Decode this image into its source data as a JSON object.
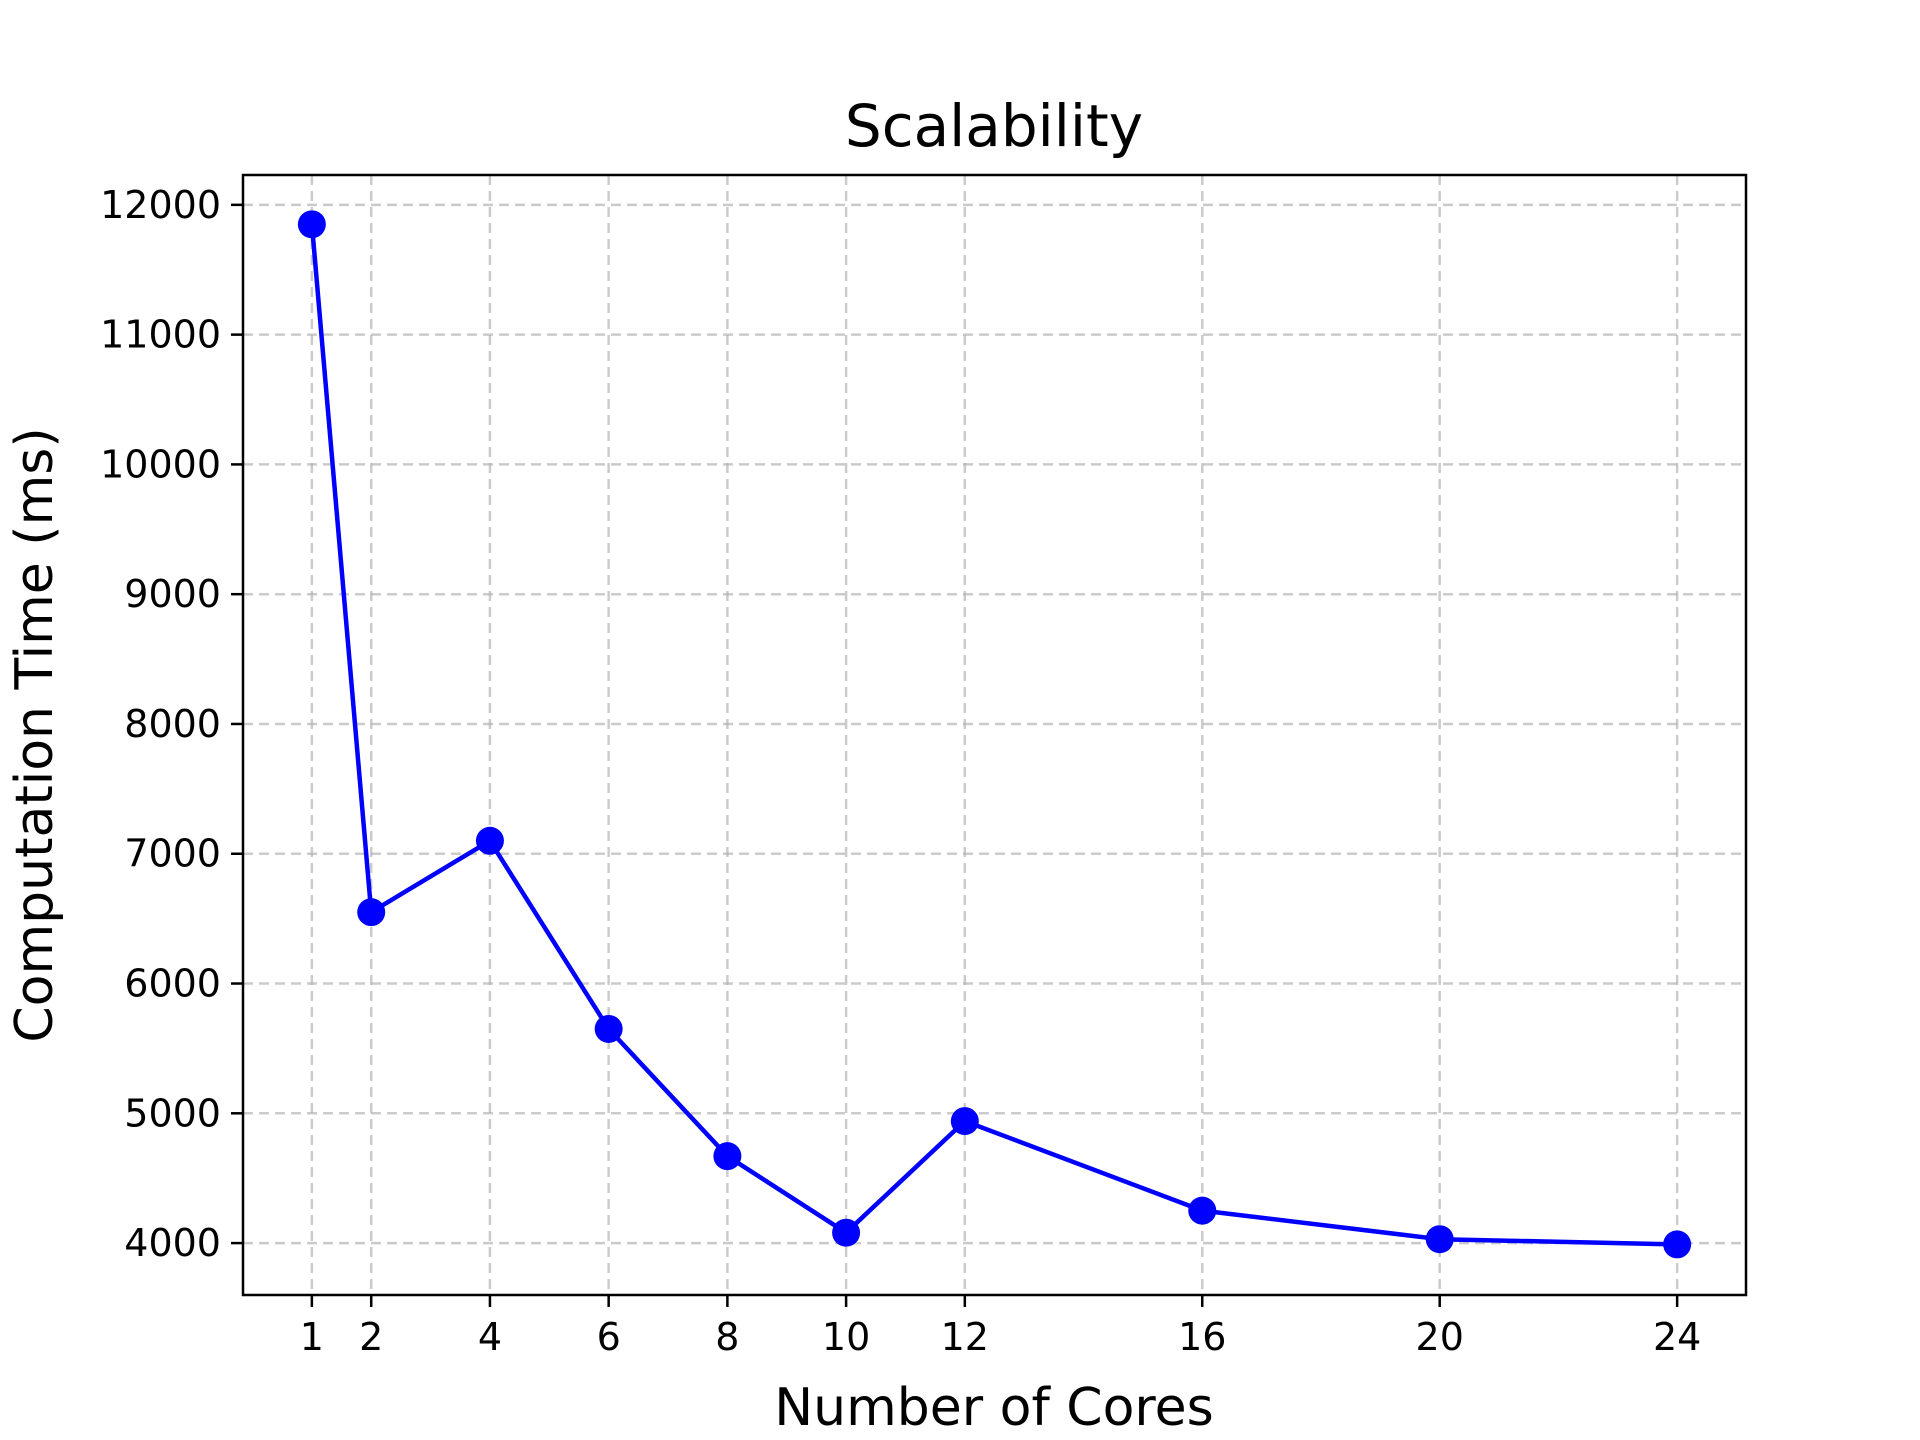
{
  "chart_data": {
    "type": "line",
    "title": "Scalability",
    "xlabel": "Number of Cores",
    "ylabel": "Computation Time (ms)",
    "x": [
      1,
      2,
      4,
      6,
      8,
      10,
      12,
      16,
      20,
      24
    ],
    "xticks": [
      "1",
      "2",
      "4",
      "6",
      "8",
      "10",
      "12",
      "16",
      "20",
      "24"
    ],
    "yticks": [
      "4000",
      "5000",
      "6000",
      "7000",
      "8000",
      "9000",
      "10000",
      "11000",
      "12000"
    ],
    "xlim": [
      -0.16,
      25.16
    ],
    "ylim": [
      3600,
      12230
    ],
    "grid": true,
    "series": [
      {
        "values": [
          11850,
          6550,
          7100,
          5650,
          4670,
          4080,
          4940,
          4250,
          4030,
          3990
        ],
        "color": "#0000ff",
        "marker": "circle"
      }
    ]
  }
}
